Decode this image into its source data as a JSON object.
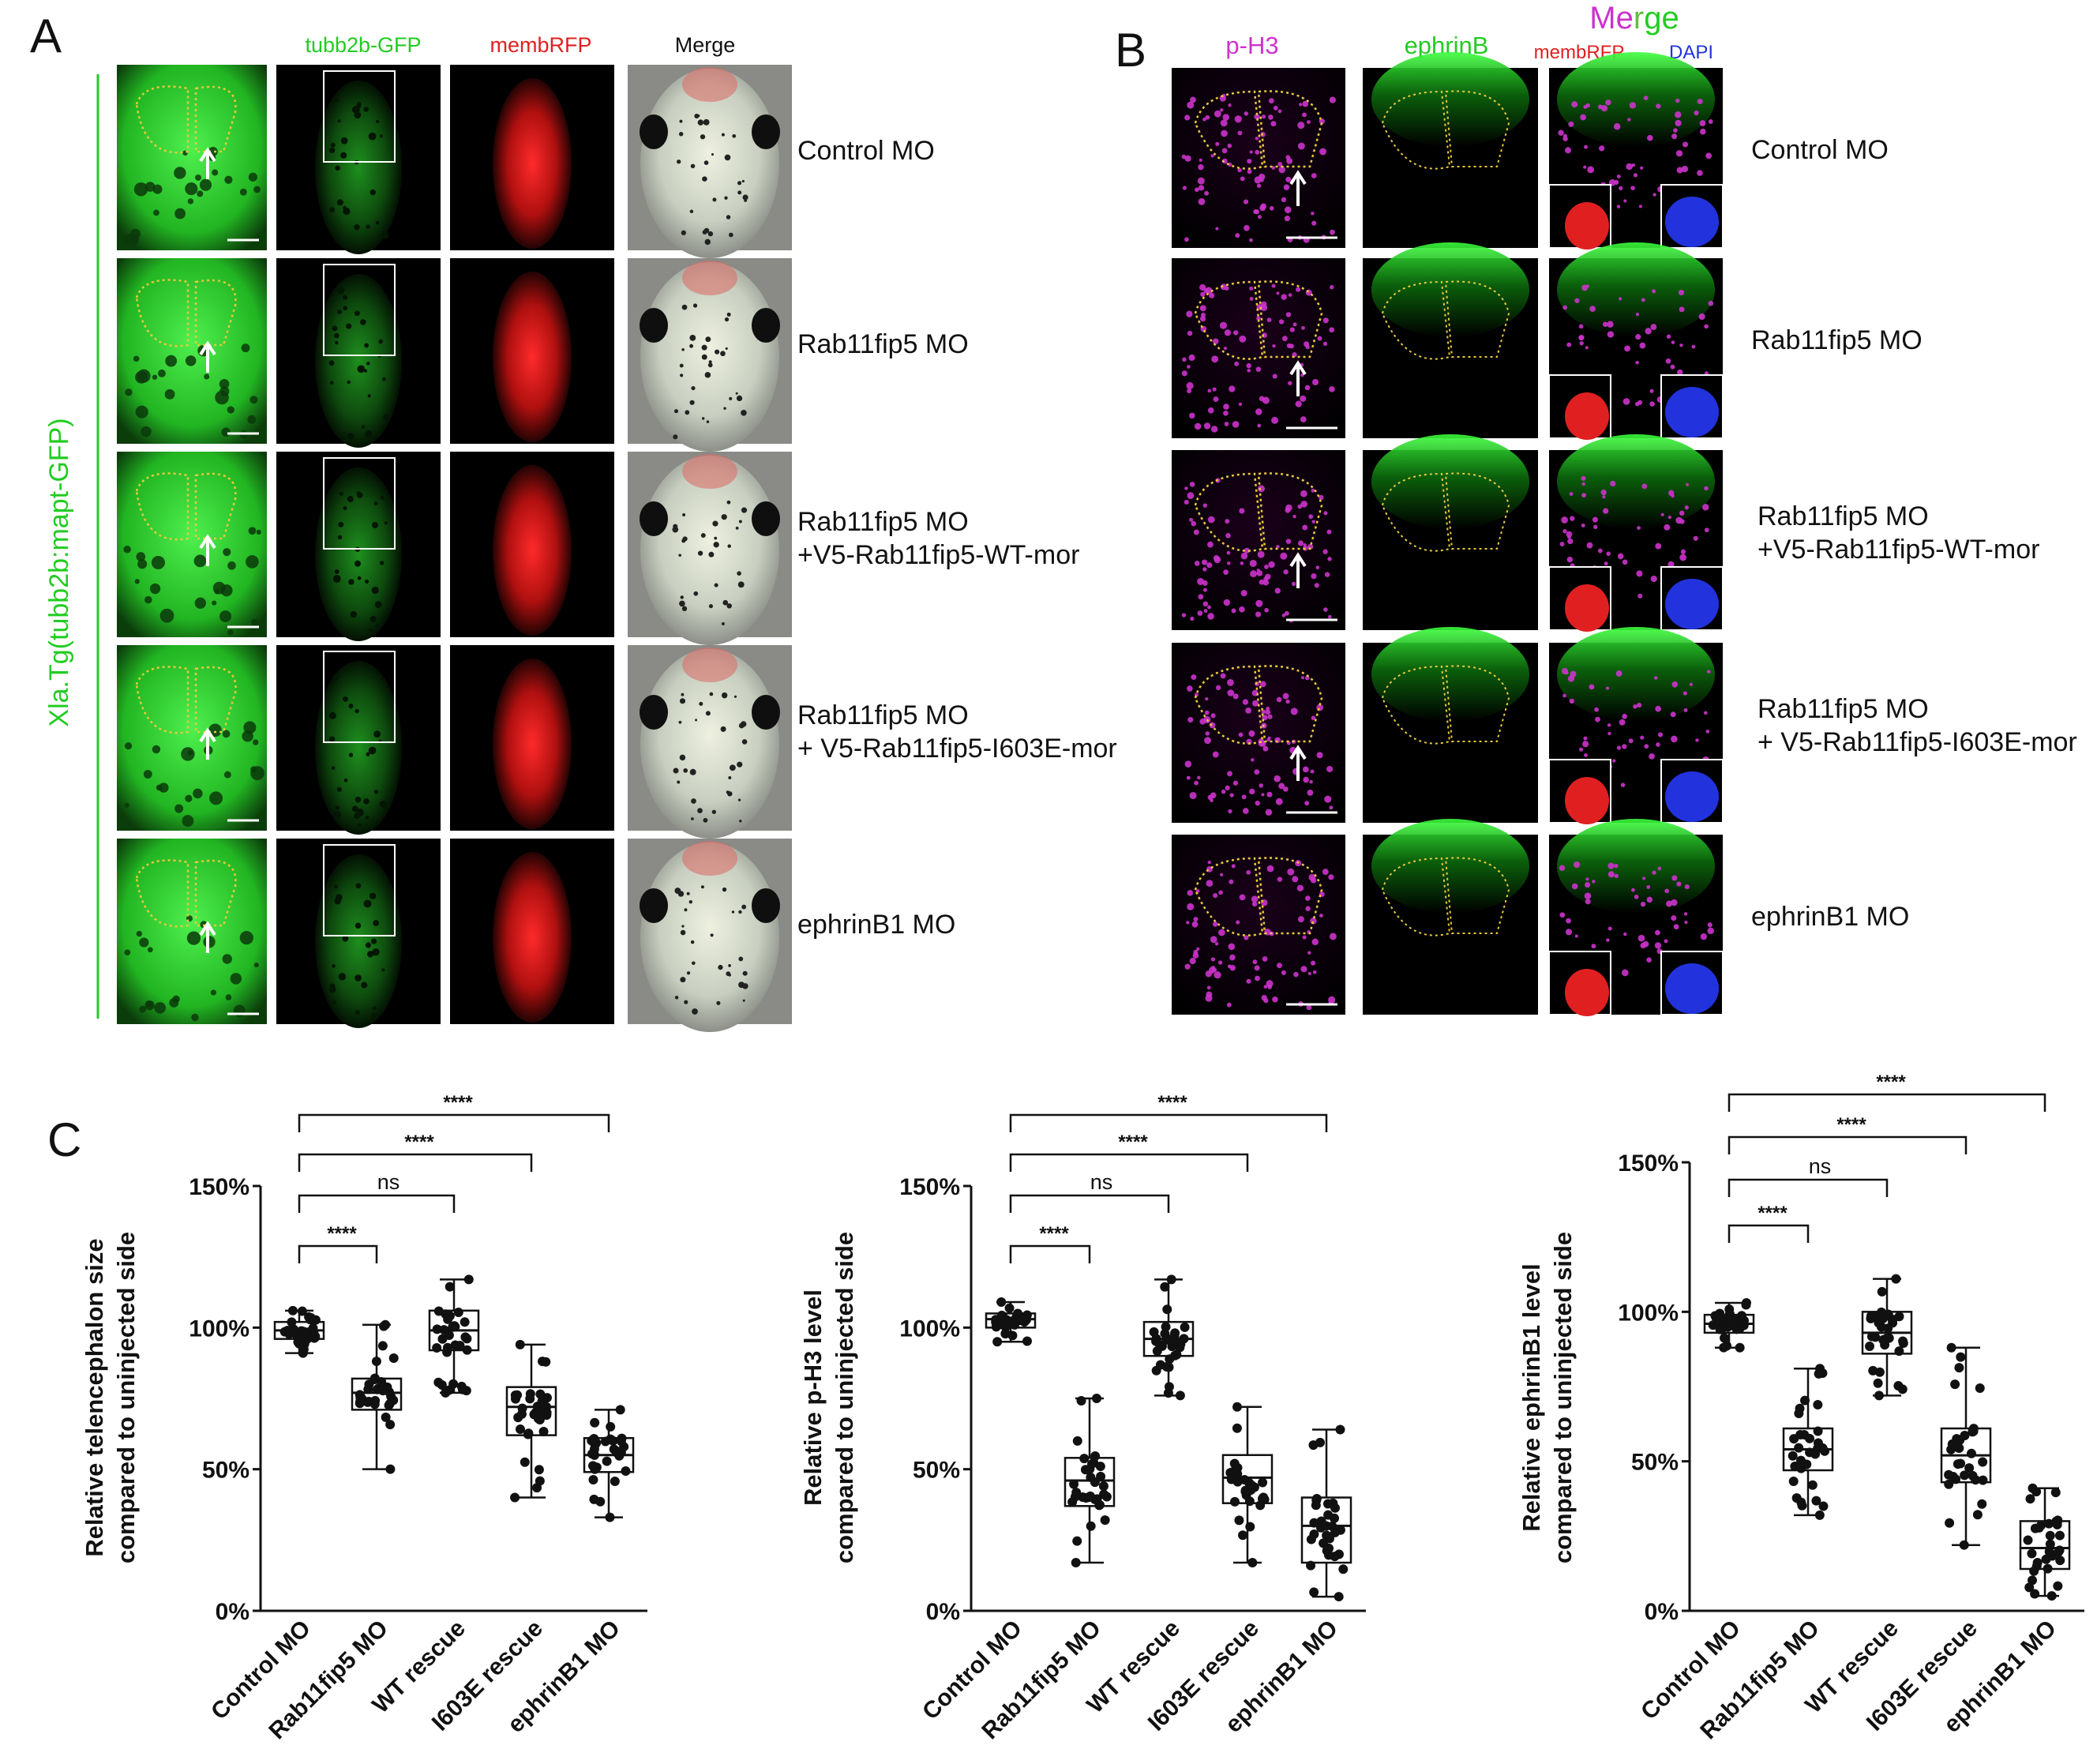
{
  "panels": {
    "A": {
      "label": "A",
      "vertical_label": "Xla.Tg(tubb2b:mapt-GFP)",
      "columns": [
        {
          "name": "tubb2b-GFP",
          "color": "#22cc22"
        },
        {
          "name": "membRFP",
          "color": "#e02020"
        },
        {
          "name": "Merge",
          "color": "#111111"
        }
      ],
      "rows": [
        {
          "label": [
            "Control MO"
          ]
        },
        {
          "label": [
            "Rab11fip5 MO"
          ]
        },
        {
          "label": [
            "Rab11fip5 MO",
            "+V5-Rab11fip5-WT-mor"
          ]
        },
        {
          "label": [
            "Rab11fip5 MO",
            "+ V5-Rab11fip5-I603E-mor"
          ]
        },
        {
          "label": [
            "ephrinB1 MO"
          ]
        }
      ]
    },
    "B": {
      "label": "B",
      "columns": [
        {
          "name": "p-H3",
          "color": "#cc33cc"
        },
        {
          "name": "ephrinB",
          "color": "#22cc22"
        }
      ],
      "merge_header": {
        "letters": [
          "M",
          "e",
          "r",
          "g",
          "e"
        ],
        "colors": [
          "#cc33cc",
          "#cc33cc",
          "#66bb44",
          "#22cc22",
          "#22cc22"
        ]
      },
      "merge_sub": [
        {
          "text": "membRFP",
          "color": "#e02020"
        },
        {
          "text": "DAPI",
          "color": "#2233dd"
        }
      ],
      "rows": [
        {
          "label": [
            "Control MO"
          ]
        },
        {
          "label": [
            "Rab11fip5 MO"
          ]
        },
        {
          "label": [
            "Rab11fip5 MO",
            "+V5-Rab11fip5-WT-mor"
          ]
        },
        {
          "label": [
            "Rab11fip5 MO",
            "+ V5-Rab11fip5-I603E-mor"
          ]
        },
        {
          "label": [
            "ephrinB1 MO"
          ]
        }
      ]
    },
    "C": {
      "label": "C"
    }
  },
  "colors": {
    "gfp": "#22cc22",
    "rfp": "#e02020",
    "ph3": "#cc33cc",
    "dapi": "#2233dd",
    "outline": "#e8c83c"
  },
  "chart_data": [
    {
      "type": "box",
      "ylabel": [
        "Relative telencephalon size",
        "compared to uninjected side"
      ],
      "ylim": [
        0,
        150
      ],
      "yticks": [
        "0%",
        "50%",
        "100%",
        "150%"
      ],
      "ytick_values": [
        0,
        50,
        100,
        150
      ],
      "categories": [
        "Control MO",
        "Rab11fip5 MO",
        "WT rescue",
        "I603E rescue",
        "ephrinB1 MO"
      ],
      "boxes": [
        {
          "min": 91,
          "q1": 96,
          "median": 99,
          "q3": 102,
          "max": 106
        },
        {
          "min": 50,
          "q1": 71,
          "median": 77,
          "q3": 82,
          "max": 101
        },
        {
          "min": 77,
          "q1": 92,
          "median": 99,
          "q3": 106,
          "max": 117
        },
        {
          "min": 40,
          "q1": 62,
          "median": 72,
          "q3": 79,
          "max": 94
        },
        {
          "min": 33,
          "q1": 49,
          "median": 55,
          "q3": 61,
          "max": 71
        }
      ],
      "comparisons": [
        {
          "from": 0,
          "to": 1,
          "label": "****"
        },
        {
          "from": 0,
          "to": 2,
          "label": "ns"
        },
        {
          "from": 0,
          "to": 3,
          "label": "****"
        },
        {
          "from": 0,
          "to": 4,
          "label": "****"
        }
      ]
    },
    {
      "type": "box",
      "ylabel": [
        "Relative p-H3 level",
        "compared to uninjected side"
      ],
      "ylim": [
        0,
        150
      ],
      "yticks": [
        "0%",
        "50%",
        "100%",
        "150%"
      ],
      "ytick_values": [
        0,
        50,
        100,
        150
      ],
      "categories": [
        "Control MO",
        "Rab11fip5 MO",
        "WT rescue",
        "I603E rescue",
        "ephrinB1 MO"
      ],
      "boxes": [
        {
          "min": 95,
          "q1": 100,
          "median": 103,
          "q3": 105,
          "max": 109
        },
        {
          "min": 17,
          "q1": 37,
          "median": 46,
          "q3": 54,
          "max": 75
        },
        {
          "min": 76,
          "q1": 90,
          "median": 96,
          "q3": 102,
          "max": 117
        },
        {
          "min": 17,
          "q1": 38,
          "median": 47,
          "q3": 55,
          "max": 72
        },
        {
          "min": 5,
          "q1": 17,
          "median": 30,
          "q3": 40,
          "max": 64
        }
      ],
      "comparisons": [
        {
          "from": 0,
          "to": 1,
          "label": "****"
        },
        {
          "from": 0,
          "to": 2,
          "label": "ns"
        },
        {
          "from": 0,
          "to": 3,
          "label": "****"
        },
        {
          "from": 0,
          "to": 4,
          "label": "****"
        }
      ]
    },
    {
      "type": "box",
      "ylabel": [
        "Relative ephrinB1 level",
        "compared to uninjected side"
      ],
      "ylim": [
        0,
        150
      ],
      "yticks": [
        "0%",
        "50%",
        "100%",
        "150%"
      ],
      "ytick_values": [
        0,
        50,
        100,
        150
      ],
      "categories": [
        "Control MO",
        "Rab11fip5 MO",
        "WT rescue",
        "I603E rescue",
        "ephrinB1 MO"
      ],
      "boxes": [
        {
          "min": 88,
          "q1": 93,
          "median": 96,
          "q3": 99,
          "max": 103
        },
        {
          "min": 32,
          "q1": 47,
          "median": 54,
          "q3": 61,
          "max": 81
        },
        {
          "min": 72,
          "q1": 86,
          "median": 93,
          "q3": 100,
          "max": 111
        },
        {
          "min": 22,
          "q1": 43,
          "median": 52,
          "q3": 61,
          "max": 88
        },
        {
          "min": 5,
          "q1": 14,
          "median": 21,
          "q3": 30,
          "max": 41
        }
      ],
      "comparisons": [
        {
          "from": 0,
          "to": 1,
          "label": "****"
        },
        {
          "from": 0,
          "to": 2,
          "label": "ns"
        },
        {
          "from": 0,
          "to": 3,
          "label": "****"
        },
        {
          "from": 0,
          "to": 4,
          "label": "****"
        }
      ]
    }
  ]
}
